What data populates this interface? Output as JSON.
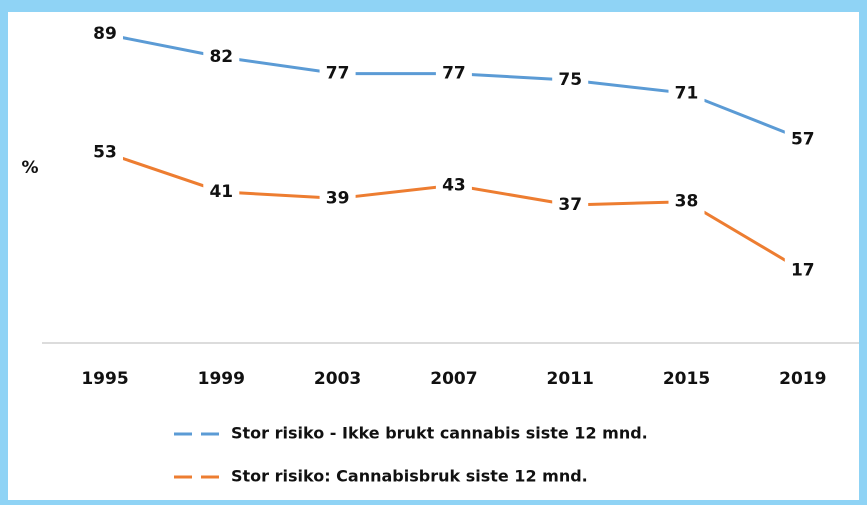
{
  "chart_data": {
    "type": "line",
    "y_label": "%",
    "categories": [
      "1995",
      "1999",
      "2003",
      "2007",
      "2011",
      "2015",
      "2019"
    ],
    "series": [
      {
        "name": "Stor risiko - Ikke brukt cannabis siste 12 mnd.",
        "color": "#5b9bd5",
        "values": [
          89,
          82,
          77,
          77,
          75,
          71,
          57
        ]
      },
      {
        "name": "Stor risiko: Cannabisbruk siste 12 mnd.",
        "color": "#ed7d31",
        "values": [
          53,
          41,
          39,
          43,
          37,
          38,
          17
        ]
      }
    ],
    "ylim": [
      -5,
      100
    ],
    "grid": false
  }
}
